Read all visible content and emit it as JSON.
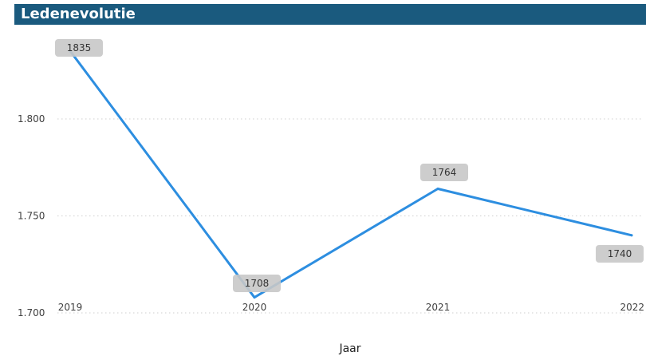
{
  "visual": {
    "title": "Ledenevolutie"
  },
  "colors": {
    "title_bar": "#1a5a7e",
    "line": "#2d8ee0",
    "label_bg": "#c8c8c8",
    "grid": "#cfcfcf"
  },
  "chart_data": {
    "type": "line",
    "title": "Ledenevolutie",
    "xlabel": "Jaar",
    "ylabel": "",
    "categories": [
      "2019",
      "2020",
      "2021",
      "2022"
    ],
    "values": [
      1835,
      1708,
      1764,
      1740
    ],
    "data_labels": [
      "1835",
      "1708",
      "1764",
      "1740"
    ],
    "y_ticks": [
      1700,
      1750,
      1800
    ],
    "y_tick_labels": [
      "1.700",
      "1.750",
      "1.800"
    ],
    "ylim": [
      1700,
      1850
    ],
    "grid": true,
    "legend": "none"
  }
}
